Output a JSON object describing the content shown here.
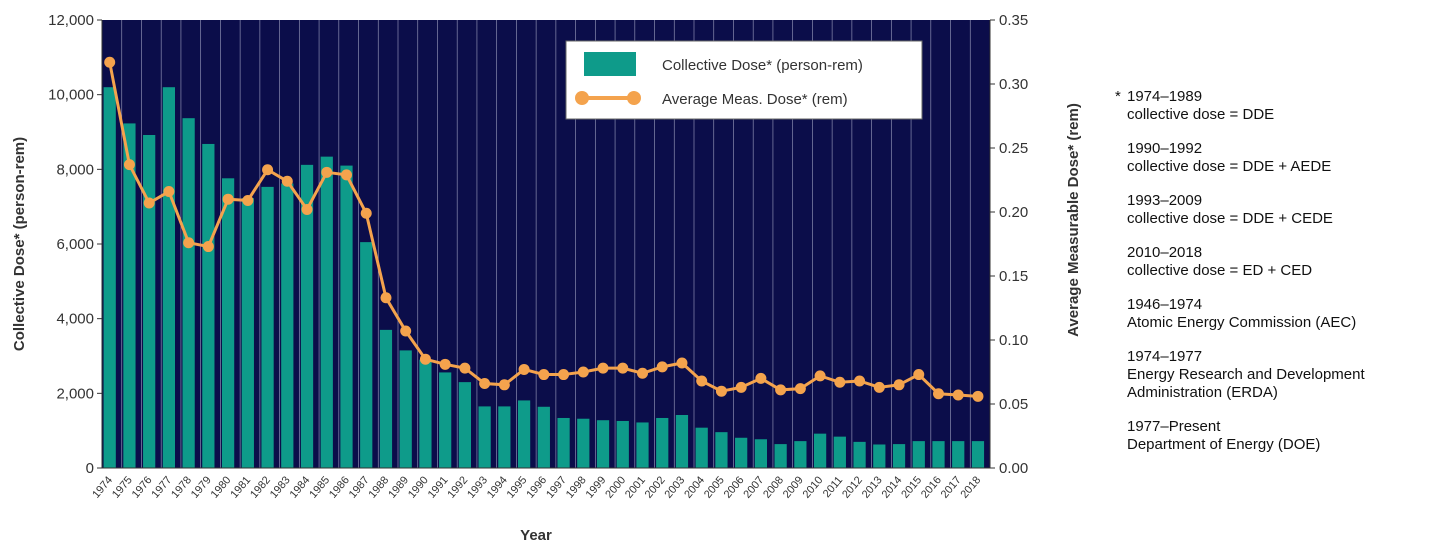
{
  "chart_data": {
    "type": "bar",
    "xlabel": "Year",
    "ylabel": "Collective Dose* (person-rem)",
    "y2label": "Average Measurable Dose* (rem)",
    "ylim": [
      0,
      12000
    ],
    "y2lim": [
      0,
      0.35
    ],
    "yticks": [
      "0",
      "2,000",
      "4,000",
      "6,000",
      "8,000",
      "10,000",
      "12,000"
    ],
    "y2ticks": [
      "0.00",
      "0.05",
      "0.10",
      "0.15",
      "0.20",
      "0.25",
      "0.30",
      "0.35"
    ],
    "categories": [
      "1974",
      "1975",
      "1976",
      "1977",
      "1978",
      "1979",
      "1980",
      "1981",
      "1982",
      "1983",
      "1984",
      "1985",
      "1986",
      "1987",
      "1988",
      "1989",
      "1990",
      "1991",
      "1992",
      "1993",
      "1994",
      "1995",
      "1996",
      "1997",
      "1998",
      "1999",
      "2000",
      "2001",
      "2002",
      "2003",
      "2004",
      "2005",
      "2006",
      "2007",
      "2008",
      "2009",
      "2010",
      "2011",
      "2012",
      "2013",
      "2014",
      "2015",
      "2016",
      "2017",
      "2018"
    ],
    "series": [
      {
        "name": "Collective Dose* (person-rem)",
        "type": "bar",
        "axis": "left",
        "color": "#0e9b8a",
        "values": [
          10200,
          9230,
          8920,
          10200,
          9370,
          8680,
          7760,
          7230,
          7530,
          7620,
          8120,
          8340,
          8100,
          6050,
          3700,
          3150,
          2900,
          2560,
          2300,
          1650,
          1650,
          1810,
          1640,
          1340,
          1320,
          1280,
          1260,
          1220,
          1340,
          1420,
          1080,
          960,
          810,
          770,
          640,
          720,
          920,
          840,
          700,
          630,
          640,
          720,
          720,
          720,
          720
        ]
      },
      {
        "name": "Average Meas. Dose* (rem)",
        "type": "line",
        "axis": "right",
        "color": "#f4a34d",
        "values": [
          0.317,
          0.237,
          0.207,
          0.216,
          0.176,
          0.173,
          0.21,
          0.209,
          0.233,
          0.224,
          0.202,
          0.231,
          0.229,
          0.199,
          0.133,
          0.107,
          0.085,
          0.081,
          0.078,
          0.066,
          0.065,
          0.077,
          0.073,
          0.073,
          0.075,
          0.078,
          0.078,
          0.074,
          0.079,
          0.082,
          0.068,
          0.06,
          0.063,
          0.07,
          0.061,
          0.062,
          0.072,
          0.067,
          0.068,
          0.063,
          0.065,
          0.073,
          0.058,
          0.057,
          0.056
        ]
      }
    ],
    "legend": "top-right",
    "grid": false,
    "plot_background": "#0b0d4a",
    "annotations": [
      {
        "star": "*",
        "period": "1974–1989",
        "text": "collective dose = DDE"
      },
      {
        "period": "1990–1992",
        "text": "collective dose = DDE + AEDE"
      },
      {
        "period": "1993–2009",
        "text": "collective dose = DDE + CEDE"
      },
      {
        "period": "2010–2018",
        "text": "collective dose = ED + CED"
      },
      {
        "period": "1946–1974",
        "text": "Atomic Energy Commission (AEC)"
      },
      {
        "period": "1974–1977",
        "text": "Energy Research and Development Administration (ERDA)"
      },
      {
        "period": "1977–Present",
        "text": "Department of Energy (DOE)"
      }
    ]
  }
}
